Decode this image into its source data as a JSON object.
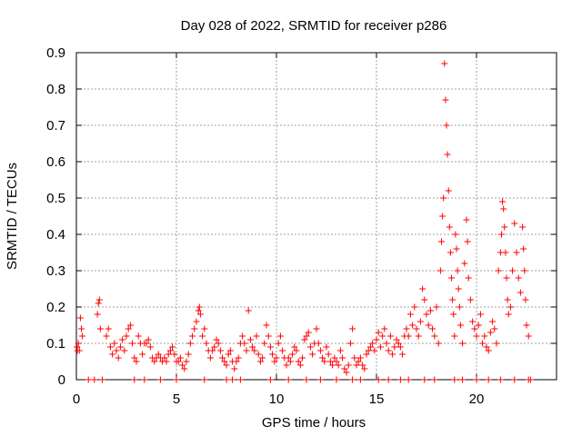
{
  "chart_data": {
    "type": "scatter",
    "title": "Day 028 of 2022, SRMTID for receiver p286",
    "xlabel": "GPS time / hours",
    "ylabel": "SRMTID / TECUs",
    "xlim": [
      0,
      24
    ],
    "ylim": [
      0,
      0.9
    ],
    "x_ticks": [
      0,
      5,
      10,
      15,
      20
    ],
    "y_ticks": [
      0,
      0.1,
      0.2,
      0.3,
      0.4,
      0.5,
      0.6,
      0.7,
      0.8,
      0.9
    ],
    "x_tick_labels": [
      "0",
      "5",
      "10",
      "15",
      "20"
    ],
    "y_tick_labels": [
      "0",
      "0.1",
      "0.2",
      "0.3",
      "0.4",
      "0.5",
      "0.6",
      "0.7",
      "0.8",
      "0.9"
    ],
    "grid": true,
    "marker": "plus",
    "color": "#ff0000",
    "series": [
      {
        "points": [
          [
            0.03,
            0.09
          ],
          [
            0.05,
            0.08
          ],
          [
            0.1,
            0.1
          ],
          [
            0.15,
            0.08
          ],
          [
            0.2,
            0.17
          ],
          [
            0.25,
            0.14
          ],
          [
            0.3,
            0.12
          ],
          [
            0.6,
            0.0
          ],
          [
            0.9,
            0.0
          ],
          [
            1.05,
            0.18
          ],
          [
            1.1,
            0.21
          ],
          [
            1.15,
            0.22
          ],
          [
            1.2,
            0.14
          ],
          [
            1.3,
            0.0
          ],
          [
            1.5,
            0.12
          ],
          [
            1.6,
            0.14
          ],
          [
            1.7,
            0.09
          ],
          [
            1.8,
            0.07
          ],
          [
            1.9,
            0.1
          ],
          [
            2.0,
            0.08
          ],
          [
            2.1,
            0.06
          ],
          [
            2.2,
            0.09
          ],
          [
            2.3,
            0.11
          ],
          [
            2.4,
            0.08
          ],
          [
            2.5,
            0.12
          ],
          [
            2.6,
            0.14
          ],
          [
            2.7,
            0.15
          ],
          [
            2.8,
            0.1
          ],
          [
            2.9,
            0.06
          ],
          [
            3.0,
            0.05
          ],
          [
            3.1,
            0.12
          ],
          [
            3.2,
            0.1
          ],
          [
            3.3,
            0.07
          ],
          [
            3.4,
            0.1
          ],
          [
            3.5,
            0.1
          ],
          [
            3.6,
            0.11
          ],
          [
            3.7,
            0.09
          ],
          [
            3.8,
            0.06
          ],
          [
            3.9,
            0.05
          ],
          [
            4.0,
            0.06
          ],
          [
            4.1,
            0.07
          ],
          [
            4.2,
            0.06
          ],
          [
            4.3,
            0.05
          ],
          [
            4.4,
            0.06
          ],
          [
            4.5,
            0.05
          ],
          [
            4.6,
            0.07
          ],
          [
            4.7,
            0.08
          ],
          [
            4.8,
            0.09
          ],
          [
            4.9,
            0.07
          ],
          [
            5.0,
            0.05
          ],
          [
            5.1,
            0.05
          ],
          [
            5.2,
            0.06
          ],
          [
            5.3,
            0.04
          ],
          [
            5.4,
            0.03
          ],
          [
            5.5,
            0.05
          ],
          [
            5.6,
            0.07
          ],
          [
            5.7,
            0.1
          ],
          [
            5.8,
            0.12
          ],
          [
            5.9,
            0.14
          ],
          [
            6.0,
            0.16
          ],
          [
            6.1,
            0.19
          ],
          [
            6.15,
            0.2
          ],
          [
            6.2,
            0.18
          ],
          [
            6.3,
            0.12
          ],
          [
            6.4,
            0.14
          ],
          [
            6.5,
            0.1
          ],
          [
            6.6,
            0.08
          ],
          [
            6.7,
            0.06
          ],
          [
            6.8,
            0.08
          ],
          [
            6.9,
            0.09
          ],
          [
            7.0,
            0.11
          ],
          [
            7.1,
            0.1
          ],
          [
            7.2,
            0.08
          ],
          [
            7.3,
            0.06
          ],
          [
            7.4,
            0.05
          ],
          [
            7.5,
            0.04
          ],
          [
            7.6,
            0.07
          ],
          [
            7.7,
            0.08
          ],
          [
            7.8,
            0.05
          ],
          [
            7.9,
            0.03
          ],
          [
            8.0,
            0.05
          ],
          [
            8.1,
            0.06
          ],
          [
            8.2,
            0.1
          ],
          [
            8.3,
            0.12
          ],
          [
            8.4,
            0.1
          ],
          [
            8.5,
            0.08
          ],
          [
            8.6,
            0.19
          ],
          [
            8.7,
            0.11
          ],
          [
            8.8,
            0.09
          ],
          [
            8.9,
            0.08
          ],
          [
            9.0,
            0.12
          ],
          [
            9.1,
            0.07
          ],
          [
            9.2,
            0.05
          ],
          [
            9.3,
            0.06
          ],
          [
            9.4,
            0.1
          ],
          [
            9.5,
            0.15
          ],
          [
            9.6,
            0.12
          ],
          [
            9.7,
            0.09
          ],
          [
            9.8,
            0.07
          ],
          [
            9.9,
            0.05
          ],
          [
            10.0,
            0.06
          ],
          [
            10.1,
            0.1
          ],
          [
            10.2,
            0.12
          ],
          [
            10.3,
            0.08
          ],
          [
            10.4,
            0.06
          ],
          [
            10.5,
            0.04
          ],
          [
            10.6,
            0.06
          ],
          [
            10.7,
            0.05
          ],
          [
            10.8,
            0.07
          ],
          [
            10.9,
            0.09
          ],
          [
            11.0,
            0.08
          ],
          [
            11.1,
            0.05
          ],
          [
            11.2,
            0.04
          ],
          [
            11.3,
            0.06
          ],
          [
            11.4,
            0.11
          ],
          [
            11.5,
            0.12
          ],
          [
            11.6,
            0.13
          ],
          [
            11.7,
            0.09
          ],
          [
            11.8,
            0.07
          ],
          [
            11.9,
            0.1
          ],
          [
            12.0,
            0.14
          ],
          [
            12.1,
            0.1
          ],
          [
            12.2,
            0.08
          ],
          [
            12.3,
            0.06
          ],
          [
            12.4,
            0.05
          ],
          [
            12.5,
            0.09
          ],
          [
            12.6,
            0.07
          ],
          [
            12.7,
            0.05
          ],
          [
            12.8,
            0.04
          ],
          [
            12.9,
            0.06
          ],
          [
            13.0,
            0.05
          ],
          [
            13.1,
            0.04
          ],
          [
            13.2,
            0.08
          ],
          [
            13.3,
            0.06
          ],
          [
            13.4,
            0.03
          ],
          [
            13.5,
            0.02
          ],
          [
            13.6,
            0.04
          ],
          [
            13.7,
            0.1
          ],
          [
            13.8,
            0.14
          ],
          [
            13.9,
            0.06
          ],
          [
            14.0,
            0.04
          ],
          [
            14.1,
            0.05
          ],
          [
            14.2,
            0.06
          ],
          [
            14.3,
            0.04
          ],
          [
            14.4,
            0.03
          ],
          [
            14.5,
            0.07
          ],
          [
            14.6,
            0.08
          ],
          [
            14.7,
            0.09
          ],
          [
            14.8,
            0.1
          ],
          [
            14.9,
            0.08
          ],
          [
            15.0,
            0.11
          ],
          [
            15.1,
            0.13
          ],
          [
            15.2,
            0.09
          ],
          [
            15.3,
            0.12
          ],
          [
            15.4,
            0.14
          ],
          [
            15.5,
            0.1
          ],
          [
            15.6,
            0.08
          ],
          [
            15.7,
            0.12
          ],
          [
            15.8,
            0.07
          ],
          [
            15.9,
            0.09
          ],
          [
            16.0,
            0.11
          ],
          [
            16.1,
            0.1
          ],
          [
            16.2,
            0.09
          ],
          [
            16.3,
            0.07
          ],
          [
            16.4,
            0.12
          ],
          [
            16.5,
            0.14
          ],
          [
            16.6,
            0.12
          ],
          [
            16.7,
            0.18
          ],
          [
            16.8,
            0.15
          ],
          [
            16.9,
            0.2
          ],
          [
            17.0,
            0.14
          ],
          [
            17.1,
            0.12
          ],
          [
            17.2,
            0.16
          ],
          [
            17.3,
            0.25
          ],
          [
            17.4,
            0.22
          ],
          [
            17.5,
            0.18
          ],
          [
            17.6,
            0.15
          ],
          [
            17.7,
            0.19
          ],
          [
            17.8,
            0.14
          ],
          [
            17.9,
            0.12
          ],
          [
            18.0,
            0.2
          ],
          [
            18.1,
            0.1
          ],
          [
            18.2,
            0.3
          ],
          [
            18.25,
            0.38
          ],
          [
            18.3,
            0.45
          ],
          [
            18.35,
            0.5
          ],
          [
            18.4,
            0.87
          ],
          [
            18.45,
            0.77
          ],
          [
            18.5,
            0.7
          ],
          [
            18.55,
            0.62
          ],
          [
            18.6,
            0.52
          ],
          [
            18.65,
            0.42
          ],
          [
            18.7,
            0.35
          ],
          [
            18.75,
            0.28
          ],
          [
            18.8,
            0.22
          ],
          [
            18.85,
            0.18
          ],
          [
            18.9,
            0.12
          ],
          [
            18.95,
            0.4
          ],
          [
            19.0,
            0.36
          ],
          [
            19.05,
            0.3
          ],
          [
            19.1,
            0.25
          ],
          [
            19.15,
            0.2
          ],
          [
            19.2,
            0.15
          ],
          [
            19.3,
            0.1
          ],
          [
            19.4,
            0.32
          ],
          [
            19.5,
            0.44
          ],
          [
            19.55,
            0.38
          ],
          [
            19.6,
            0.28
          ],
          [
            19.7,
            0.22
          ],
          [
            19.8,
            0.16
          ],
          [
            19.9,
            0.14
          ],
          [
            20.0,
            0.12
          ],
          [
            20.1,
            0.15
          ],
          [
            20.2,
            0.18
          ],
          [
            20.3,
            0.1
          ],
          [
            20.4,
            0.12
          ],
          [
            20.5,
            0.09
          ],
          [
            20.6,
            0.08
          ],
          [
            20.7,
            0.13
          ],
          [
            20.8,
            0.16
          ],
          [
            20.9,
            0.14
          ],
          [
            21.0,
            0.1
          ],
          [
            21.1,
            0.3
          ],
          [
            21.2,
            0.35
          ],
          [
            21.25,
            0.4
          ],
          [
            21.3,
            0.49
          ],
          [
            21.35,
            0.47
          ],
          [
            21.4,
            0.42
          ],
          [
            21.45,
            0.35
          ],
          [
            21.5,
            0.28
          ],
          [
            21.55,
            0.22
          ],
          [
            21.6,
            0.18
          ],
          [
            21.7,
            0.2
          ],
          [
            21.8,
            0.3
          ],
          [
            21.9,
            0.43
          ],
          [
            22.0,
            0.35
          ],
          [
            22.1,
            0.28
          ],
          [
            22.2,
            0.24
          ],
          [
            22.3,
            0.42
          ],
          [
            22.35,
            0.36
          ],
          [
            22.4,
            0.3
          ],
          [
            22.45,
            0.22
          ],
          [
            22.5,
            0.15
          ],
          [
            22.6,
            0.12
          ],
          [
            22.7,
            0.0
          ],
          [
            2.9,
            0.0
          ],
          [
            3.4,
            0.0
          ],
          [
            4.2,
            0.0
          ],
          [
            5.0,
            0.0
          ],
          [
            6.4,
            0.0
          ],
          [
            7.5,
            0.0
          ],
          [
            7.8,
            0.0
          ],
          [
            8.2,
            0.0
          ],
          [
            9.7,
            0.0
          ],
          [
            10.6,
            0.0
          ],
          [
            11.5,
            0.0
          ],
          [
            12.2,
            0.0
          ],
          [
            13.0,
            0.0
          ],
          [
            13.8,
            0.0
          ],
          [
            14.2,
            0.0
          ],
          [
            15.1,
            0.0
          ],
          [
            15.6,
            0.0
          ],
          [
            16.2,
            0.0
          ],
          [
            16.6,
            0.0
          ],
          [
            17.4,
            0.0
          ],
          [
            17.9,
            0.0
          ],
          [
            18.9,
            0.0
          ],
          [
            19.3,
            0.0
          ],
          [
            20.0,
            0.0
          ],
          [
            20.6,
            0.0
          ],
          [
            21.2,
            0.0
          ],
          [
            21.9,
            0.0
          ],
          [
            22.6,
            0.0
          ]
        ]
      }
    ]
  }
}
